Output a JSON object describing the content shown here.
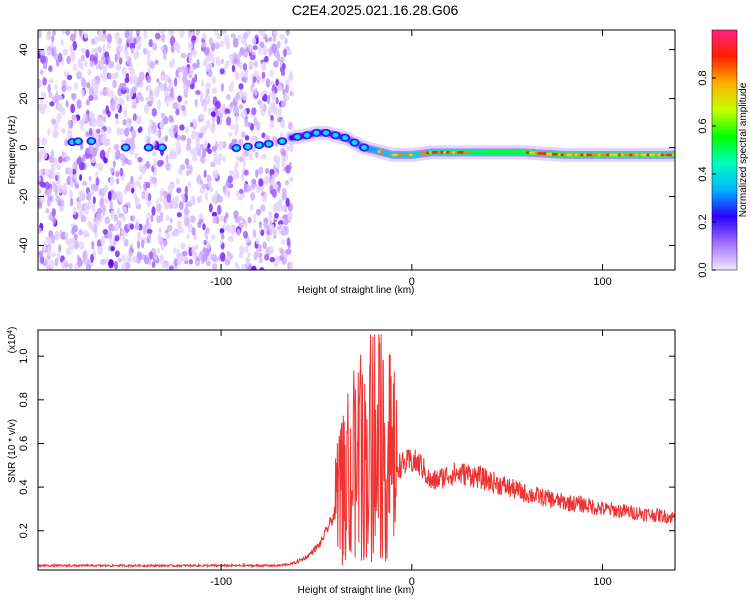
{
  "title": "C2E4.2025.021.16.28.G06",
  "chart_data": [
    {
      "type": "heatmap",
      "xlabel": "Height of straight line (km)",
      "ylabel": "Frequency (Hz)",
      "xlim": [
        -196,
        138
      ],
      "ylim": [
        -50,
        48
      ],
      "xticks": [
        -100,
        0,
        100
      ],
      "xtick_labels": [
        "-100",
        "0",
        "100"
      ],
      "yticks": [
        -40,
        -20,
        0,
        20,
        40
      ],
      "ytick_labels": [
        "-40",
        "-20",
        "0",
        "20",
        "40"
      ],
      "noise_region_x": [
        -196,
        -63
      ],
      "signal_track": {
        "x": [
          -196,
          -180,
          -170,
          -160,
          -150,
          -140,
          -130,
          -120,
          -110,
          -100,
          -90,
          -80,
          -70,
          -63,
          -55,
          -50,
          -45,
          -40,
          -35,
          -30,
          -25,
          -20,
          -15,
          -10,
          -5,
          0,
          10,
          20,
          40,
          60,
          80,
          100,
          120,
          138
        ],
        "y": [
          1,
          2,
          3,
          1,
          0,
          0,
          0,
          0,
          -1,
          -1,
          0,
          1,
          2,
          4,
          5,
          6,
          6,
          5,
          4,
          2,
          0,
          -1,
          -2,
          -3,
          -3,
          -3,
          -2,
          -2,
          -2,
          -2,
          -3,
          -3,
          -3,
          -3
        ]
      },
      "colorbar": {
        "label": "Normalized spectral amplitude",
        "range": [
          0,
          1
        ],
        "ticks": [
          0.0,
          0.2,
          0.4,
          0.6,
          0.8
        ],
        "tick_labels": [
          "0.0",
          "0.2",
          "0.4",
          "0.6",
          "0.8"
        ],
        "colors": [
          "#f2e6ff",
          "#a070ff",
          "#2a00ff",
          "#00b4ff",
          "#00ffc0",
          "#00ff00",
          "#c8ff00",
          "#ffb000",
          "#ff2000",
          "#ff2080"
        ]
      }
    },
    {
      "type": "line",
      "xlabel": "Height of straight line (km)",
      "ylabel": "SNR (10 * v/v)",
      "y_multiplier_label": "(x10",
      "y_multiplier_exp": "4",
      "y_multiplier_close": ")",
      "xlim": [
        -196,
        138
      ],
      "ylim": [
        0.02,
        1.12
      ],
      "xticks": [
        -100,
        0,
        100
      ],
      "xtick_labels": [
        "-100",
        "0",
        "100"
      ],
      "yticks": [
        0.2,
        0.4,
        0.6,
        0.8,
        1.0
      ],
      "ytick_labels": [
        "0.2",
        "0.4",
        "0.6",
        "0.8",
        "1.0"
      ],
      "line_color": "#ee3333",
      "envelope": {
        "x": [
          -196,
          -150,
          -100,
          -70,
          -62,
          -55,
          -48,
          -42,
          -38,
          -32,
          -28,
          -24,
          -20,
          -15,
          -10,
          -5,
          0,
          5,
          10,
          20,
          30,
          40,
          50,
          60,
          70,
          80,
          90,
          100,
          110,
          120,
          130,
          138
        ],
        "y": [
          0.04,
          0.04,
          0.04,
          0.04,
          0.05,
          0.08,
          0.14,
          0.25,
          0.32,
          0.45,
          0.5,
          0.52,
          0.55,
          0.52,
          0.5,
          0.5,
          0.52,
          0.5,
          0.42,
          0.46,
          0.46,
          0.43,
          0.4,
          0.37,
          0.35,
          0.33,
          0.32,
          0.3,
          0.29,
          0.28,
          0.27,
          0.26
        ]
      }
    }
  ]
}
